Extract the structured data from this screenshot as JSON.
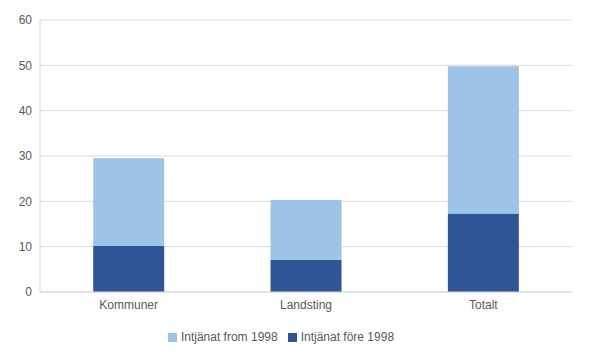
{
  "chart_data": {
    "type": "bar",
    "categories": [
      "Kommuner",
      "Landsting",
      "Totalt"
    ],
    "series": [
      {
        "name": "Intjänat före 1998",
        "color": "#2f5597",
        "values": [
          10.2,
          7.1,
          17.3
        ]
      },
      {
        "name": "Intjänat from 1998",
        "color": "#9dc3e6",
        "values": [
          19.3,
          13.2,
          32.5
        ]
      }
    ],
    "ylim": [
      0,
      60
    ],
    "yticks": [
      0,
      10,
      20,
      30,
      40,
      50,
      60
    ],
    "grid": true,
    "stacked": true,
    "legend": "bottom"
  }
}
